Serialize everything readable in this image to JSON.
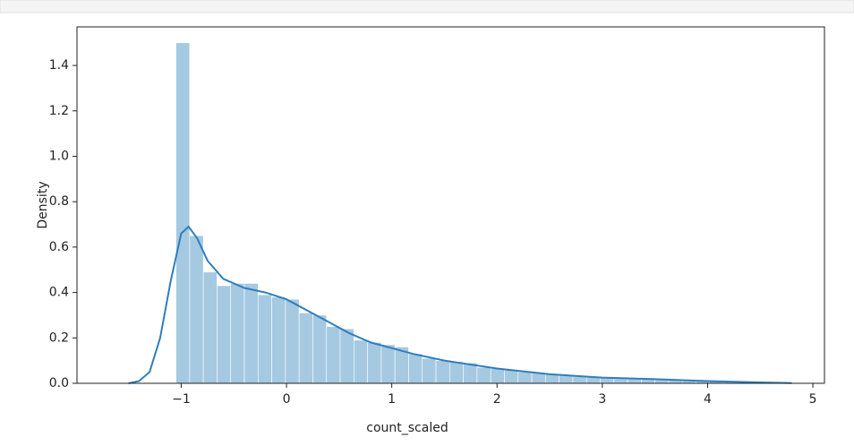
{
  "chart_data": {
    "type": "histogram",
    "xlabel": "count_scaled",
    "ylabel": "Density",
    "bins": [
      -1.05,
      -0.92,
      -0.79,
      -0.66,
      -0.53,
      -0.4,
      -0.27,
      -0.14,
      -0.01,
      0.12,
      0.25,
      0.38,
      0.51,
      0.64,
      0.77,
      0.9,
      1.03,
      1.16,
      1.29,
      1.42,
      1.55,
      1.68,
      1.81,
      1.94,
      2.07,
      2.2,
      2.33,
      2.46,
      2.59,
      2.72,
      2.85,
      2.98,
      3.11,
      3.24,
      3.37,
      3.5,
      3.63,
      3.76,
      3.89,
      4.02,
      4.15,
      4.28,
      4.41,
      4.54,
      4.67,
      4.8
    ],
    "values": [
      1.5,
      0.65,
      0.49,
      0.43,
      0.44,
      0.44,
      0.39,
      0.38,
      0.37,
      0.31,
      0.3,
      0.25,
      0.24,
      0.19,
      0.18,
      0.17,
      0.16,
      0.13,
      0.11,
      0.1,
      0.095,
      0.09,
      0.07,
      0.065,
      0.06,
      0.05,
      0.045,
      0.04,
      0.035,
      0.03,
      0.028,
      0.025,
      0.022,
      0.02,
      0.018,
      0.016,
      0.014,
      0.012,
      0.01,
      0.008,
      0.007,
      0.005,
      0.004,
      0.003,
      0.002
    ],
    "color": "#1f77b4",
    "kde": {
      "x": [
        -1.5,
        -1.4,
        -1.3,
        -1.2,
        -1.1,
        -1.0,
        -0.93,
        -0.85,
        -0.75,
        -0.6,
        -0.4,
        -0.2,
        0,
        0.2,
        0.4,
        0.6,
        0.8,
        1.0,
        1.2,
        1.5,
        2.0,
        2.5,
        3.0,
        3.5,
        4.0,
        4.5,
        4.8
      ],
      "values": [
        0,
        0.01,
        0.05,
        0.2,
        0.45,
        0.66,
        0.69,
        0.64,
        0.54,
        0.46,
        0.42,
        0.4,
        0.37,
        0.32,
        0.27,
        0.22,
        0.18,
        0.155,
        0.13,
        0.1,
        0.065,
        0.04,
        0.025,
        0.018,
        0.01,
        0.004,
        0.001
      ],
      "color": "#2f7ebc"
    },
    "xlim": [
      -1.99,
      5.11
    ],
    "ylim": [
      0,
      1.57
    ],
    "xticks": [
      {
        "value": -1,
        "label": "−1"
      },
      0,
      1,
      2,
      3,
      4,
      5
    ],
    "yticks": [
      {
        "value": 0,
        "label": "0.0"
      },
      {
        "value": 0.2,
        "label": "0.2"
      },
      {
        "value": 0.4,
        "label": "0.4"
      },
      {
        "value": 0.6,
        "label": "0.6"
      },
      {
        "value": 0.8,
        "label": "0.8"
      },
      {
        "value": 1.0,
        "label": "1.0"
      },
      {
        "value": 1.2,
        "label": "1.2"
      },
      {
        "value": 1.4,
        "label": "1.4"
      }
    ]
  }
}
